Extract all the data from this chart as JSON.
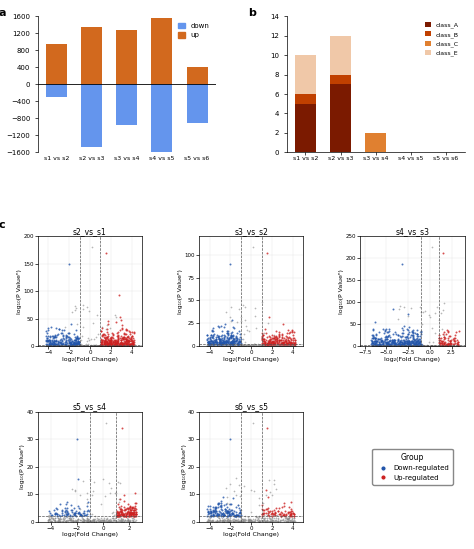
{
  "panel_a": {
    "categories": [
      "s1 vs s2",
      "s2 vs s3",
      "s3 vs s4",
      "s4 vs s5",
      "s5 vs s6"
    ],
    "up": [
      950,
      1350,
      1280,
      1560,
      420
    ],
    "down": [
      300,
      1480,
      950,
      1600,
      900
    ],
    "up_color": "#d2691e",
    "down_color": "#6495ed",
    "ylim": [
      -1600,
      1600
    ],
    "yticks": [
      -1600,
      -1200,
      -800,
      -400,
      0,
      400,
      800,
      1200,
      1600
    ]
  },
  "panel_b": {
    "categories": [
      "s1 vs s2",
      "s2 vs s3",
      "s3 vs s4",
      "s4 vs s5",
      "s5 vs s6"
    ],
    "class_A": [
      5,
      7,
      0,
      0,
      0
    ],
    "class_B": [
      1,
      1,
      0,
      0,
      0
    ],
    "class_C": [
      0,
      0,
      2,
      0,
      0
    ],
    "class_E": [
      4,
      4,
      0,
      0,
      0
    ],
    "colors": {
      "class_A": "#7b1a00",
      "class_B": "#c04000",
      "class_C": "#e08030",
      "class_E": "#f0c8a8"
    },
    "ylim": [
      0,
      14
    ],
    "yticks": [
      0,
      2,
      4,
      6,
      8,
      10,
      12,
      14
    ]
  },
  "volcano_plots": [
    {
      "title": "s2_vs_s1",
      "xlim": [
        -5,
        5
      ],
      "ylim": [
        0,
        200
      ],
      "yticks": [
        0,
        50,
        100,
        150,
        200
      ],
      "xticks": [
        -4,
        -2,
        0,
        2,
        4
      ],
      "vlines": [
        -1,
        1
      ],
      "hline": 2,
      "xlabel": "log₂(Fold Change)",
      "ylabel": "log₁₀(P Valueⁿ)"
    },
    {
      "title": "s3_vs_s2",
      "xlim": [
        -5,
        5
      ],
      "ylim": [
        0,
        120
      ],
      "yticks": [
        0,
        25,
        50,
        75,
        100
      ],
      "xticks": [
        -4,
        -2,
        0,
        2,
        4
      ],
      "vlines": [
        -1,
        1
      ],
      "hline": 2,
      "xlabel": "log₂(Fold Change)",
      "ylabel": "log₁₀(P Valueⁿ)"
    },
    {
      "title": "s4_vs_s3",
      "xlim": [
        -8,
        4
      ],
      "ylim": [
        0,
        250
      ],
      "yticks": [
        0,
        50,
        100,
        150,
        200,
        250
      ],
      "xticks": [
        -7.5,
        -5.0,
        -2.5,
        0.0,
        2.5
      ],
      "vlines": [
        -1,
        1
      ],
      "hline": 2,
      "xlabel": "log₂(Fold Change)",
      "ylabel": "log₁₀(P Valueⁿ)"
    },
    {
      "title": "s5_vs_s4",
      "xlim": [
        -5,
        3
      ],
      "ylim": [
        0,
        40
      ],
      "yticks": [
        0,
        10,
        20,
        30,
        40
      ],
      "xticks": [
        -4,
        -2,
        0,
        2
      ],
      "vlines": [
        -1,
        1
      ],
      "hline": 2,
      "xlabel": "log₂(Fold Change)",
      "ylabel": "log₁₀(P Valueⁿ)"
    },
    {
      "title": "s6_vs_s5",
      "xlim": [
        -5,
        5
      ],
      "ylim": [
        0,
        40
      ],
      "yticks": [
        0,
        10,
        20,
        30,
        40
      ],
      "xticks": [
        -4,
        -2,
        0,
        2,
        4
      ],
      "vlines": [
        -1,
        1
      ],
      "hline": 2,
      "xlabel": "log₂(Fold Change)",
      "ylabel": "log₁₀(P Valueⁿ)"
    }
  ],
  "panel_labels": [
    "a",
    "b",
    "c"
  ],
  "down_color": "#2255aa",
  "up_color": "#cc2222",
  "grey_color": "#888888",
  "background_color": "#ffffff"
}
